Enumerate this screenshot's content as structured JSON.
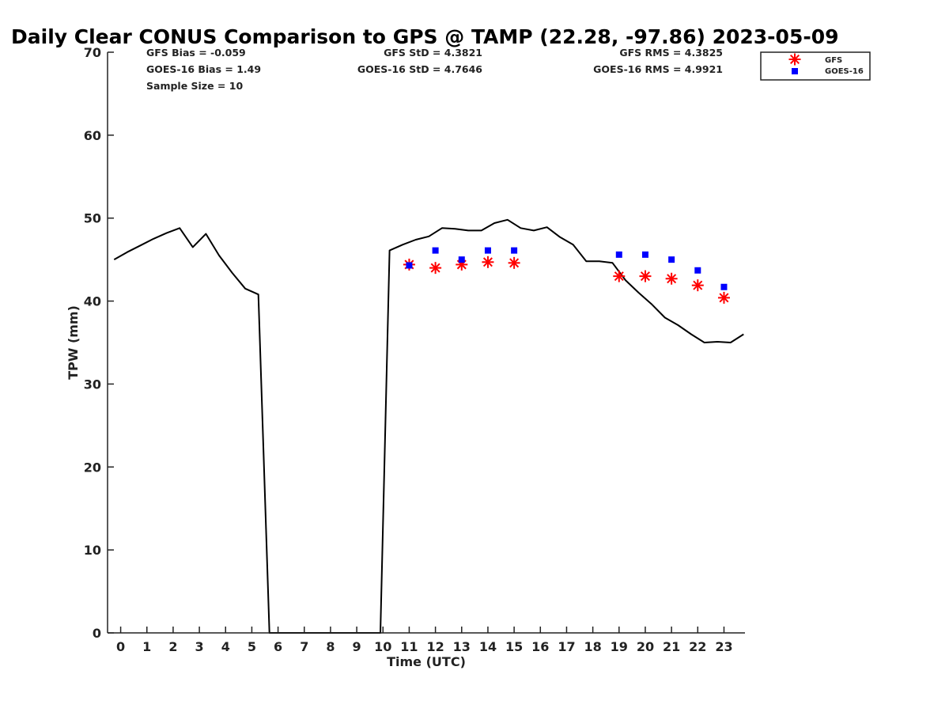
{
  "chart_data": {
    "type": "line",
    "title": "Daily Clear CONUS Comparison to GPS @ TAMP (22.28, -97.86) 2023-05-09",
    "xlabel": "Time (UTC)",
    "ylabel": "TPW (mm)",
    "xlim": [
      -0.5,
      23.8
    ],
    "ylim": [
      0,
      70
    ],
    "x_ticks": [
      0,
      1,
      2,
      3,
      4,
      5,
      6,
      7,
      8,
      9,
      10,
      11,
      12,
      13,
      14,
      15,
      16,
      17,
      18,
      19,
      20,
      21,
      22,
      23
    ],
    "y_ticks": [
      0,
      10,
      20,
      30,
      40,
      50,
      60,
      70
    ],
    "grid": false,
    "legend_position": "top-right",
    "stats": {
      "gfs_bias": "GFS Bias = -0.059",
      "goes_bias": "GOES-16 Bias = 1.49",
      "sample_size": "Sample Size = 10",
      "gfs_std": "GFS StD = 4.3821",
      "goes_std": "GOES-16 StD = 4.7646",
      "gfs_rms": "GFS RMS = 4.3825",
      "goes_rms": "GOES-16 RMS = 4.9921"
    },
    "series": [
      {
        "kind": "line",
        "color": "#000000",
        "x": [
          -0.25,
          0.25,
          0.75,
          1.25,
          1.75,
          2.25,
          2.75,
          3.25,
          3.75,
          4.25,
          4.75,
          5.25,
          5.67,
          9.9,
          10.25,
          10.75,
          11.25,
          11.75,
          12.25,
          12.75,
          13.25,
          13.75,
          14.25,
          14.75,
          15.25,
          15.75,
          16.25,
          16.75,
          17.25,
          17.75,
          18.25,
          18.75,
          19.25,
          19.75,
          20.25,
          20.75,
          21.25,
          21.75,
          22.25,
          22.75,
          23.25,
          23.75
        ],
        "y": [
          45.0,
          45.9,
          46.7,
          47.5,
          48.2,
          48.8,
          46.5,
          48.1,
          45.5,
          43.4,
          41.5,
          40.8,
          0,
          0,
          46.1,
          46.8,
          47.4,
          47.8,
          48.8,
          48.7,
          48.5,
          48.5,
          49.4,
          49.8,
          48.8,
          48.5,
          48.9,
          47.7,
          46.8,
          44.8,
          44.8,
          44.6,
          42.5,
          41.0,
          39.6,
          38.0,
          37.1,
          36.0,
          35.0,
          35.1,
          35.0,
          36.0
        ]
      },
      {
        "name": "GFS",
        "kind": "scatter",
        "marker": "asterisk",
        "color": "#ff0000",
        "x": [
          11,
          12,
          13,
          14,
          15,
          19,
          20,
          21,
          22,
          23
        ],
        "y": [
          44.4,
          44.0,
          44.4,
          44.7,
          44.6,
          43.0,
          43.0,
          42.7,
          41.9,
          40.4
        ]
      },
      {
        "name": "GOES-16",
        "kind": "scatter",
        "marker": "square",
        "color": "#0000ff",
        "x": [
          11,
          12,
          13,
          14,
          15,
          19,
          20,
          21,
          22,
          23
        ],
        "y": [
          44.3,
          46.1,
          45.0,
          46.1,
          46.1,
          45.6,
          45.6,
          45.0,
          43.7,
          41.7
        ]
      }
    ]
  }
}
